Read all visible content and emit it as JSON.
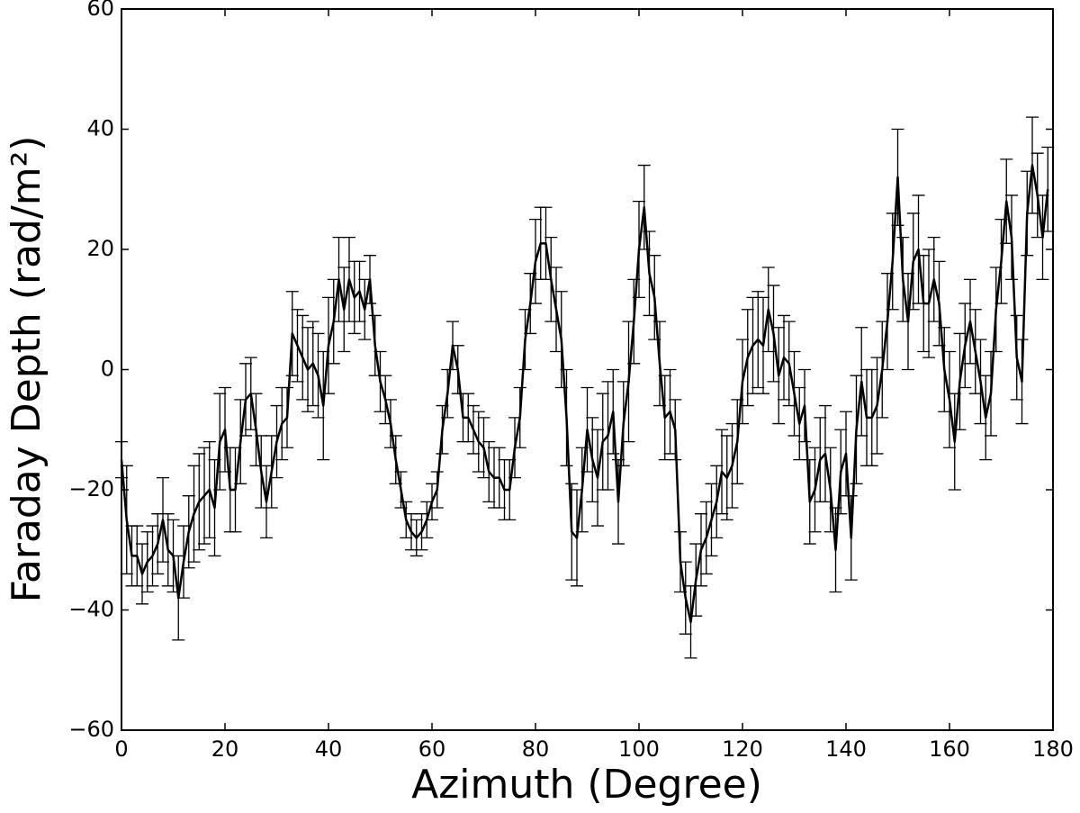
{
  "chart_data": {
    "type": "errorbar-line",
    "x_label": "Azimuth (Degree)",
    "y_label": "Faraday Depth (rad/m²)",
    "xlim": [
      0,
      180
    ],
    "ylim": [
      -60,
      60
    ],
    "xticks": [
      0,
      20,
      40,
      60,
      80,
      100,
      120,
      140,
      160,
      180
    ],
    "yticks": [
      {
        "value": -60,
        "label": "−60"
      },
      {
        "value": -40,
        "label": "−40"
      },
      {
        "value": -20,
        "label": "−20"
      },
      0,
      20,
      40,
      60
    ],
    "grid": false,
    "x": [
      0,
      1,
      2,
      3,
      4,
      5,
      6,
      7,
      8,
      9,
      10,
      11,
      12,
      13,
      14,
      15,
      16,
      17,
      18,
      19,
      20,
      21,
      22,
      23,
      24,
      25,
      26,
      27,
      28,
      29,
      30,
      31,
      32,
      33,
      34,
      35,
      36,
      37,
      38,
      39,
      40,
      41,
      42,
      43,
      44,
      45,
      46,
      47,
      48,
      49,
      50,
      51,
      52,
      53,
      54,
      55,
      56,
      57,
      58,
      59,
      60,
      61,
      62,
      63,
      64,
      65,
      66,
      67,
      68,
      69,
      70,
      71,
      72,
      73,
      74,
      75,
      76,
      77,
      78,
      79,
      80,
      81,
      82,
      83,
      84,
      85,
      86,
      87,
      88,
      89,
      90,
      91,
      92,
      93,
      94,
      95,
      96,
      97,
      98,
      99,
      100,
      101,
      102,
      103,
      104,
      105,
      106,
      107,
      108,
      109,
      110,
      111,
      112,
      113,
      114,
      115,
      116,
      117,
      118,
      119,
      120,
      121,
      122,
      123,
      124,
      125,
      126,
      127,
      128,
      129,
      130,
      131,
      132,
      133,
      134,
      135,
      136,
      137,
      138,
      139,
      140,
      141,
      142,
      143,
      144,
      145,
      146,
      147,
      148,
      149,
      150,
      151,
      152,
      153,
      154,
      155,
      156,
      157,
      158,
      159,
      160,
      161,
      162,
      163,
      164,
      165,
      166,
      167,
      168,
      169,
      170,
      171,
      172,
      173,
      174,
      175,
      176,
      177,
      178,
      179
    ],
    "series": [
      {
        "color": "#000000",
        "values": [
          -15,
          -25,
          -31,
          -31,
          -34,
          -32,
          -31,
          -29,
          -25,
          -30,
          -31,
          -38,
          -32,
          -27,
          -24,
          -22,
          -21,
          -20,
          -23,
          -12,
          -10,
          -20,
          -20,
          -12,
          -5,
          -4,
          -10,
          -17,
          -22,
          -17,
          -12,
          -9,
          -8,
          6,
          4,
          2,
          0,
          1,
          -1,
          -6,
          4,
          8,
          15,
          10,
          15,
          12,
          13,
          10,
          15,
          4,
          -2,
          -5,
          -9,
          -15,
          -20,
          -25,
          -27,
          -28,
          -27,
          -25,
          -22,
          -20,
          -10,
          -4,
          4,
          0,
          -8,
          -8,
          -10,
          -12,
          -13,
          -17,
          -18,
          -18,
          -20,
          -20,
          -13,
          -8,
          5,
          11,
          18,
          21,
          21,
          15,
          10,
          5,
          -8,
          -27,
          -28,
          -20,
          -10,
          -15,
          -18,
          -12,
          -11,
          -7,
          -22,
          -9,
          -2,
          8,
          20,
          27,
          16,
          12,
          1,
          -8,
          -7,
          -10,
          -32,
          -38,
          -42,
          -35,
          -30,
          -28,
          -25,
          -22,
          -17,
          -18,
          -16,
          -12,
          -2,
          2,
          4,
          5,
          4,
          10,
          6,
          -1,
          2,
          1,
          -4,
          -9,
          -6,
          -22,
          -20,
          -15,
          -14,
          -20,
          -30,
          -17,
          -14,
          -28,
          -10,
          -2,
          -8,
          -8,
          -6,
          0,
          8,
          18,
          32,
          15,
          8,
          18,
          20,
          11,
          11,
          15,
          11,
          0,
          -5,
          -12,
          -2,
          4,
          8,
          3,
          -2,
          -8,
          -4,
          10,
          18,
          28,
          22,
          2,
          -2,
          26,
          34,
          29,
          22,
          30
        ],
        "errors": [
          3,
          9,
          5,
          5,
          5,
          5,
          5,
          5,
          7,
          6,
          6,
          7,
          6,
          6,
          8,
          8,
          8,
          8,
          8,
          8,
          7,
          7,
          7,
          7,
          6,
          6,
          6,
          6,
          6,
          6,
          6,
          6,
          5,
          7,
          6,
          7,
          7,
          7,
          7,
          9,
          8,
          7,
          7,
          7,
          7,
          6,
          5,
          5,
          4,
          5,
          5,
          4,
          4,
          4,
          3,
          3,
          3,
          3,
          3,
          3,
          3,
          3,
          4,
          4,
          4,
          4,
          4,
          4,
          4,
          5,
          5,
          5,
          5,
          5,
          5,
          5,
          5,
          5,
          5,
          5,
          7,
          6,
          6,
          7,
          7,
          8,
          8,
          8,
          8,
          7,
          7,
          7,
          8,
          8,
          9,
          7,
          7,
          7,
          10,
          7,
          8,
          7,
          7,
          7,
          7,
          7,
          7,
          5,
          5,
          6,
          6,
          6,
          6,
          6,
          6,
          6,
          7,
          7,
          7,
          7,
          7,
          8,
          8,
          8,
          8,
          7,
          8,
          8,
          7,
          7,
          7,
          6,
          6,
          7,
          7,
          7,
          8,
          7,
          7,
          7,
          7,
          7,
          9,
          9,
          8,
          8,
          8,
          8,
          8,
          8,
          8,
          7,
          8,
          8,
          9,
          8,
          9,
          7,
          7,
          7,
          8,
          8,
          8,
          7,
          7,
          7,
          7,
          7,
          7,
          7,
          7,
          7,
          7,
          7,
          7,
          7,
          8,
          7,
          7,
          7
        ]
      }
    ]
  }
}
